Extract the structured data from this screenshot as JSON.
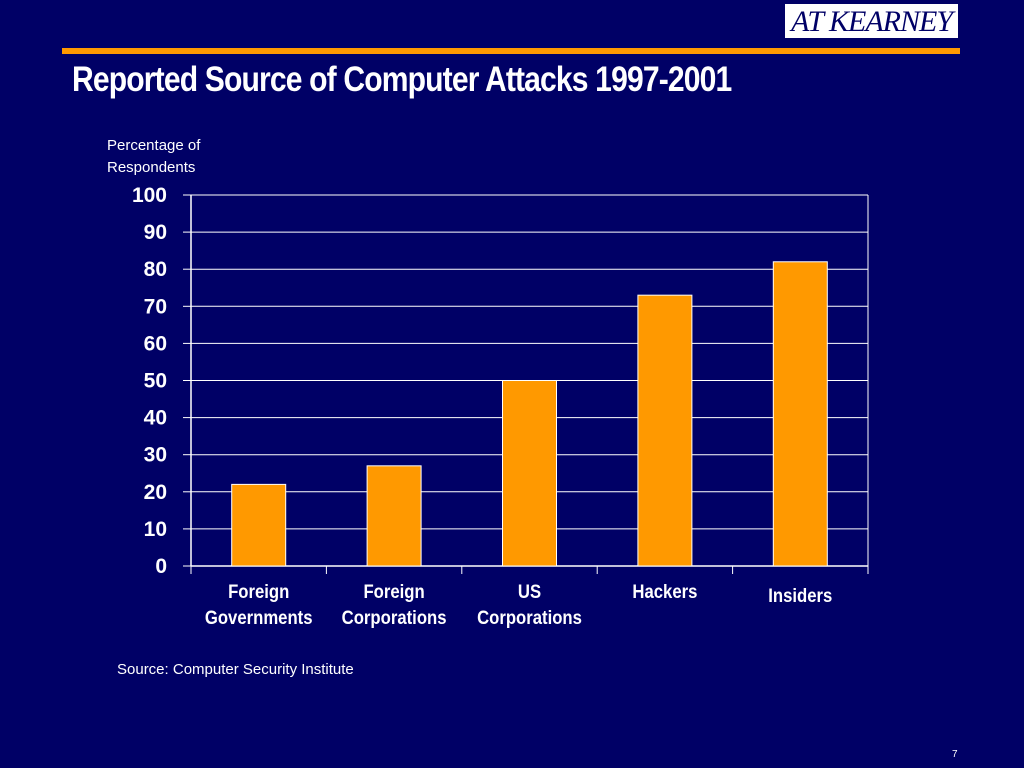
{
  "header": {
    "logo_text": "AT KEARNEY",
    "title": "Reported Source of Computer Attacks 1997-2001"
  },
  "colors": {
    "background": "#000066",
    "accent": "#ff9900",
    "bar_fill": "#ff9900",
    "bar_stroke": "#ffffff",
    "text": "#ffffff"
  },
  "chart_data": {
    "type": "bar",
    "title": "",
    "ylabel": "Percentage of Respondents",
    "xlabel": "",
    "categories": [
      [
        "Foreign",
        "Governments"
      ],
      [
        "Foreign",
        "Corporations"
      ],
      [
        "US",
        "Corporations"
      ],
      [
        "Hackers"
      ],
      [
        "Insiders"
      ]
    ],
    "values": [
      22,
      27,
      50,
      73,
      82
    ],
    "ylim": [
      0,
      100
    ],
    "yticks": [
      0,
      10,
      20,
      30,
      40,
      50,
      60,
      70,
      80,
      90,
      100
    ],
    "grid": true,
    "legend": "none"
  },
  "footer": {
    "source": "Source: Computer Security Institute",
    "page_number": "7"
  }
}
